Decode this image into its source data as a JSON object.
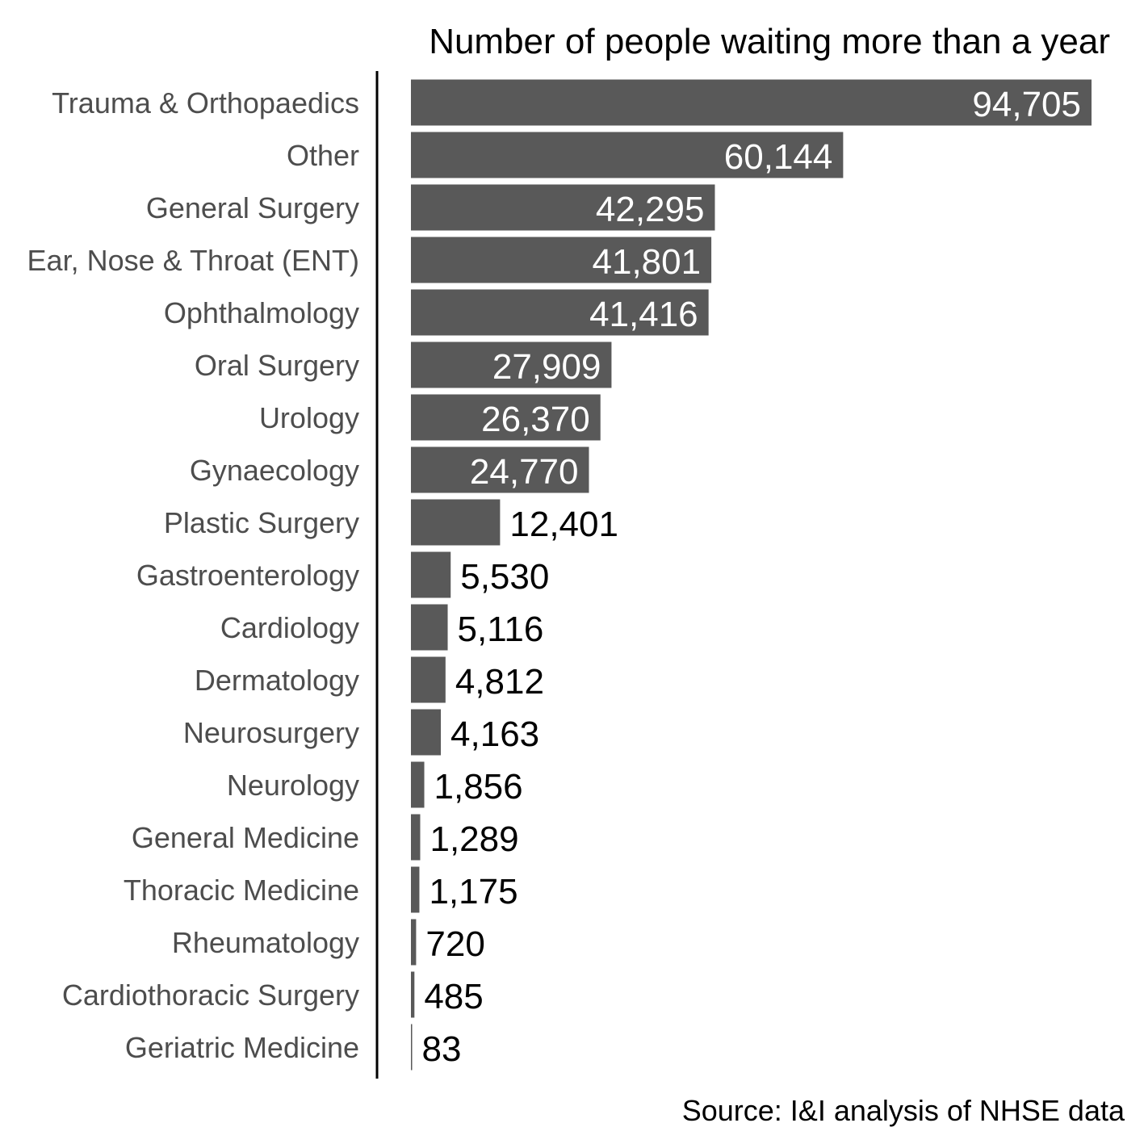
{
  "chart_data": {
    "type": "bar",
    "orientation": "horizontal",
    "title": "Number of people waiting more than a year",
    "source": "Source: I&I analysis of NHSE data",
    "categories": [
      "Trauma & Orthopaedics",
      "Other",
      "General Surgery",
      "Ear, Nose & Throat (ENT)",
      "Ophthalmology",
      "Oral Surgery",
      "Urology",
      "Gynaecology",
      "Plastic Surgery",
      "Gastroenterology",
      "Cardiology",
      "Dermatology",
      "Neurosurgery",
      "Neurology",
      "General Medicine",
      "Thoracic Medicine",
      "Rheumatology",
      "Cardiothoracic Surgery",
      "Geriatric Medicine"
    ],
    "values": [
      94705,
      60144,
      42295,
      41801,
      41416,
      27909,
      26370,
      24770,
      12401,
      5530,
      5116,
      4812,
      4163,
      1856,
      1289,
      1175,
      720,
      485,
      83
    ],
    "value_labels": [
      "94,705",
      "60,144",
      "42,295",
      "41,801",
      "41,416",
      "27,909",
      "26,370",
      "24,770",
      "12,401",
      "5,530",
      "5,116",
      "4,812",
      "4,163",
      "1,856",
      "1,289",
      "1,175",
      "720",
      "485",
      "83"
    ],
    "xlim": [
      0,
      94705
    ],
    "grid": false,
    "legend": "none",
    "colors": {
      "bar": "#595959",
      "label_inside": "#ffffff",
      "label_outside": "#000000",
      "axis": "#000000",
      "category_text": "#4d4d4d"
    }
  }
}
